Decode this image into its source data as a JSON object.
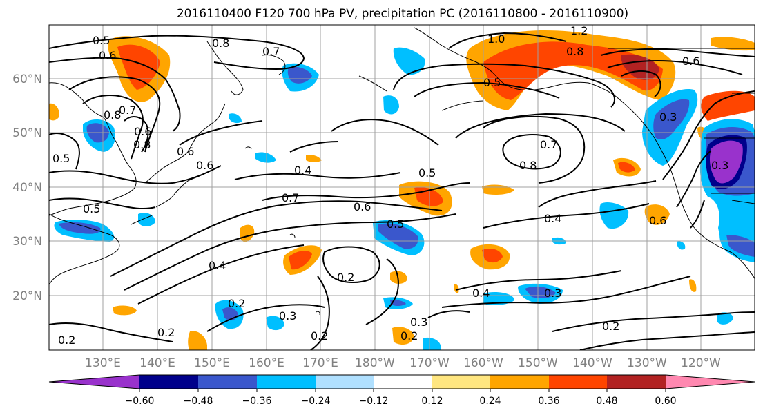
{
  "title": "2016110400 F120 700 hPa PV, precipitation PC (2016110800 - 2016110900)",
  "lat_labels": [
    "60°N",
    "50°N",
    "40°N",
    "30°N",
    "20°N"
  ],
  "lon_labels": [
    "130°E",
    "140°E",
    "150°E",
    "160°E",
    "170°E",
    "180°W",
    "170°W",
    "160°W",
    "150°W",
    "140°W",
    "130°W",
    "120°W"
  ],
  "colorbar": {
    "colors": [
      "#9932cc",
      "#00008b",
      "#3a57cc",
      "#00bfff",
      "#b0e0ff",
      "#ffffff",
      "#ffe680",
      "#ffa500",
      "#ff4500",
      "#b22222",
      "#ff88b0"
    ],
    "tick_labels": [
      "−0.60",
      "−0.48",
      "−0.36",
      "−0.24",
      "−0.12",
      "0.12",
      "0.24",
      "0.36",
      "0.48",
      "0.60"
    ]
  },
  "contour_labels": [
    "0.5",
    "0.6",
    "0.8",
    "0.7",
    "1.0",
    "1.2",
    "0.8",
    "0.6",
    "0.5",
    "0.3",
    "0.8",
    "0.7",
    "0.6",
    "0.6",
    "0.5",
    "0.8",
    "0.6",
    "0.5",
    "0.4",
    "0.5",
    "0.7",
    "0.6",
    "0.5",
    "0.7",
    "0.8",
    "0.4",
    "0.6",
    "0.3",
    "0.4",
    "0.2",
    "0.4",
    "0.3",
    "0.2",
    "0.3",
    "0.2",
    "0.2",
    "0.2",
    "0.2",
    "0.2",
    "0.3"
  ]
}
